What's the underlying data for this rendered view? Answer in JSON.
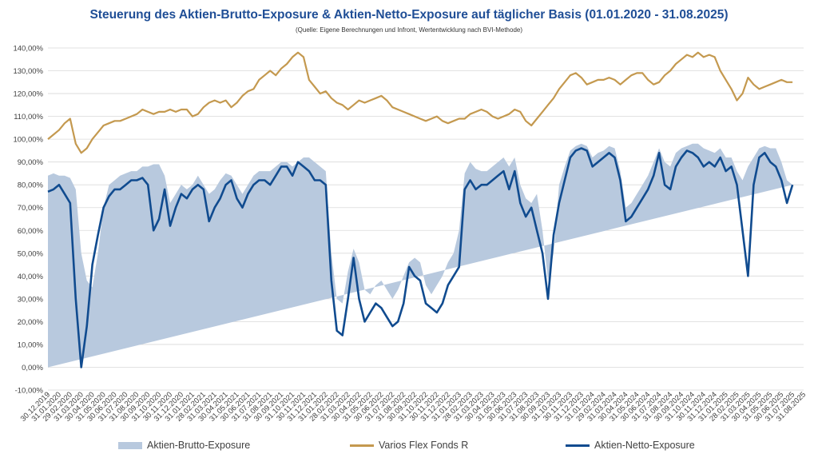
{
  "title": "Steuerung des Aktien-Brutto-Exposure & Aktien-Netto-Exposure auf täglicher Basis (01.01.2020 - 31.08.2025)",
  "subtitle": "(Quelle: Eigene Berechnungen und Infront, Wertentwicklung nach BVI-Methode)",
  "colors": {
    "brutto": "#b8c9de",
    "fund": "#c4994f",
    "netto": "#104b8f",
    "title": "#1f4e96"
  },
  "legend": [
    "Aktien-Brutto-Exposure",
    "Varios Flex Fonds R",
    "Aktien-Netto-Exposure"
  ],
  "chart_data": {
    "type": "line",
    "title": "Steuerung des Aktien-Brutto-Exposure & Aktien-Netto-Exposure auf täglicher Basis (01.01.2020 - 31.08.2025)",
    "y_unit": "%",
    "ylim": [
      -10,
      140
    ],
    "y_ticks": [
      "140,00%",
      "130,00%",
      "120,00%",
      "110,00%",
      "100,00%",
      "90,00%",
      "80,00%",
      "70,00%",
      "60,00%",
      "50,00%",
      "40,00%",
      "30,00%",
      "20,00%",
      "10,00%",
      "0,00%",
      "-10,00%"
    ],
    "x_ticks": [
      "30.12.2019",
      "31.01.2020",
      "29.02.2020",
      "31.03.2020",
      "30.04.2020",
      "31.05.2020",
      "30.06.2020",
      "31.07.2020",
      "31.08.2020",
      "30.09.2020",
      "31.10.2020",
      "30.11.2020",
      "31.12.2020",
      "31.01.2021",
      "28.02.2021",
      "31.03.2021",
      "30.04.2021",
      "31.05.2021",
      "30.06.2021",
      "31.07.2021",
      "31.08.2021",
      "30.09.2021",
      "31.10.2021",
      "30.11.2021",
      "31.12.2021",
      "31.01.2022",
      "28.02.2022",
      "31.03.2022",
      "30.04.2022",
      "31.05.2022",
      "30.06.2022",
      "31.07.2022",
      "31.08.2022",
      "30.09.2022",
      "31.10.2022",
      "30.11.2022",
      "31.12.2022",
      "31.01.2023",
      "28.02.2023",
      "31.03.2023",
      "30.04.2023",
      "31.05.2023",
      "30.06.2023",
      "31.07.2023",
      "31.08.2023",
      "30.09.2023",
      "31.10.2023",
      "30.11.2023",
      "31.12.2023",
      "31.01.2024",
      "29.02.2024",
      "31.03.2024",
      "30.04.2024",
      "31.05.2024",
      "30.06.2024",
      "31.07.2024",
      "31.08.2024",
      "30.09.2024",
      "31.10.2024",
      "30.11.2024",
      "31.12.2024",
      "31.01.2025",
      "28.02.2025",
      "31.03.2025",
      "30.04.2025",
      "31.05.2025",
      "30.06.2025",
      "31.07.2025",
      "31.08.2025"
    ],
    "grid": true,
    "legend_position": "bottom",
    "series": [
      {
        "name": "Aktien-Brutto-Exposure",
        "kind": "area",
        "x_month_index": [
          0,
          0.5,
          1,
          1.5,
          2,
          2.5,
          3,
          3.5,
          4,
          4.5,
          5,
          5.5,
          6,
          6.5,
          7,
          7.5,
          8,
          8.5,
          9,
          9.5,
          10,
          10.5,
          11,
          11.5,
          12,
          12.5,
          13,
          13.5,
          14,
          14.5,
          15,
          15.5,
          16,
          16.5,
          17,
          17.5,
          18,
          18.5,
          19,
          19.5,
          20,
          20.5,
          21,
          21.5,
          22,
          22.5,
          23,
          23.5,
          24,
          24.5,
          25,
          25.5,
          26,
          26.5,
          27,
          27.5,
          28,
          28.5,
          29,
          29.5,
          30,
          30.5,
          31,
          31.5,
          32,
          32.5,
          33,
          33.5,
          34,
          34.5,
          35,
          35.5,
          36,
          36.5,
          37,
          37.5,
          38,
          38.5,
          39,
          39.5,
          40,
          40.5,
          41,
          41.5,
          42,
          42.5,
          43,
          43.5,
          44,
          44.5,
          45,
          45.5,
          46,
          46.5,
          47,
          47.5,
          48,
          48.5,
          49,
          49.5,
          50,
          50.5,
          51,
          51.5,
          52,
          52.5,
          53,
          53.5,
          54,
          54.5,
          55,
          55.5,
          56,
          56.5,
          57,
          57.5,
          58,
          58.5,
          59,
          59.5,
          60,
          60.5,
          61,
          61.5,
          62,
          62.5,
          63,
          63.5,
          64,
          64.5,
          65,
          65.5,
          66,
          66.5,
          67,
          67.5,
          68
        ],
        "values": [
          84,
          85,
          84,
          84,
          83,
          78,
          50,
          38,
          35,
          50,
          70,
          80,
          82,
          84,
          85,
          86,
          86,
          88,
          88,
          89,
          89,
          84,
          72,
          76,
          80,
          78,
          80,
          84,
          80,
          76,
          78,
          82,
          85,
          84,
          80,
          76,
          80,
          84,
          86,
          86,
          86,
          88,
          90,
          90,
          88,
          90,
          92,
          92,
          90,
          88,
          86,
          50,
          30,
          28,
          42,
          52,
          46,
          34,
          32,
          36,
          38,
          34,
          30,
          34,
          40,
          46,
          48,
          46,
          36,
          32,
          36,
          40,
          46,
          50,
          60,
          85,
          90,
          87,
          86,
          86,
          88,
          90,
          92,
          88,
          92,
          80,
          74,
          72,
          76,
          60,
          38,
          50,
          80,
          88,
          95,
          97,
          98,
          97,
          92,
          94,
          95,
          97,
          96,
          86,
          70,
          72,
          76,
          80,
          84,
          90,
          96,
          90,
          88,
          94,
          96,
          97,
          98,
          98,
          96,
          95,
          94,
          96,
          92,
          92,
          86,
          82,
          88,
          92,
          96,
          97,
          96,
          96,
          90,
          82,
          80
        ]
      },
      {
        "name": "Varios Flex Fonds R",
        "kind": "line",
        "x_month_index": [
          0,
          0.5,
          1,
          1.5,
          2,
          2.5,
          3,
          3.5,
          4,
          4.5,
          5,
          5.5,
          6,
          6.5,
          7,
          7.5,
          8,
          8.5,
          9,
          9.5,
          10,
          10.5,
          11,
          11.5,
          12,
          12.5,
          13,
          13.5,
          14,
          14.5,
          15,
          15.5,
          16,
          16.5,
          17,
          17.5,
          18,
          18.5,
          19,
          19.5,
          20,
          20.5,
          21,
          21.5,
          22,
          22.5,
          23,
          23.5,
          24,
          24.5,
          25,
          25.5,
          26,
          26.5,
          27,
          27.5,
          28,
          28.5,
          29,
          29.5,
          30,
          30.5,
          31,
          31.5,
          32,
          32.5,
          33,
          33.5,
          34,
          34.5,
          35,
          35.5,
          36,
          36.5,
          37,
          37.5,
          38,
          38.5,
          39,
          39.5,
          40,
          40.5,
          41,
          41.5,
          42,
          42.5,
          43,
          43.5,
          44,
          44.5,
          45,
          45.5,
          46,
          46.5,
          47,
          47.5,
          48,
          48.5,
          49,
          49.5,
          50,
          50.5,
          51,
          51.5,
          52,
          52.5,
          53,
          53.5,
          54,
          54.5,
          55,
          55.5,
          56,
          56.5,
          57,
          57.5,
          58,
          58.5,
          59,
          59.5,
          60,
          60.5,
          61,
          61.5,
          62,
          62.5,
          63,
          63.5,
          64,
          64.5,
          65,
          65.5,
          66,
          66.5,
          67,
          67.5,
          68
        ],
        "values": [
          100,
          102,
          104,
          107,
          109,
          98,
          94,
          96,
          100,
          103,
          106,
          107,
          108,
          108,
          109,
          110,
          111,
          113,
          112,
          111,
          112,
          112,
          113,
          112,
          113,
          113,
          110,
          111,
          114,
          116,
          117,
          116,
          117,
          114,
          116,
          119,
          121,
          122,
          126,
          128,
          130,
          128,
          131,
          133,
          136,
          138,
          136,
          126,
          123,
          120,
          121,
          118,
          116,
          115,
          113,
          115,
          117,
          116,
          117,
          118,
          119,
          117,
          114,
          113,
          112,
          111,
          110,
          109,
          108,
          109,
          110,
          108,
          107,
          108,
          109,
          109,
          111,
          112,
          113,
          112,
          110,
          109,
          110,
          111,
          113,
          112,
          108,
          106,
          109,
          112,
          115,
          118,
          122,
          125,
          128,
          129,
          127,
          124,
          125,
          126,
          126,
          127,
          126,
          124,
          126,
          128,
          129,
          129,
          126,
          124,
          125,
          128,
          130,
          133,
          135,
          137,
          136,
          138,
          136,
          137,
          136,
          130,
          126,
          122,
          117,
          120,
          127,
          124,
          122,
          123,
          124,
          125,
          126,
          125,
          125
        ]
      },
      {
        "name": "Aktien-Netto-Exposure",
        "kind": "line",
        "x_month_index": [
          0,
          0.5,
          1,
          1.5,
          2,
          2.5,
          3,
          3.5,
          4,
          4.5,
          5,
          5.5,
          6,
          6.5,
          7,
          7.5,
          8,
          8.5,
          9,
          9.5,
          10,
          10.5,
          11,
          11.5,
          12,
          12.5,
          13,
          13.5,
          14,
          14.5,
          15,
          15.5,
          16,
          16.5,
          17,
          17.5,
          18,
          18.5,
          19,
          19.5,
          20,
          20.5,
          21,
          21.5,
          22,
          22.5,
          23,
          23.5,
          24,
          24.5,
          25,
          25.5,
          26,
          26.5,
          27,
          27.5,
          28,
          28.5,
          29,
          29.5,
          30,
          30.5,
          31,
          31.5,
          32,
          32.5,
          33,
          33.5,
          34,
          34.5,
          35,
          35.5,
          36,
          36.5,
          37,
          37.5,
          38,
          38.5,
          39,
          39.5,
          40,
          40.5,
          41,
          41.5,
          42,
          42.5,
          43,
          43.5,
          44,
          44.5,
          45,
          45.5,
          46,
          46.5,
          47,
          47.5,
          48,
          48.5,
          49,
          49.5,
          50,
          50.5,
          51,
          51.5,
          52,
          52.5,
          53,
          53.5,
          54,
          54.5,
          55,
          55.5,
          56,
          56.5,
          57,
          57.5,
          58,
          58.5,
          59,
          59.5,
          60,
          60.5,
          61,
          61.5,
          62,
          62.5,
          63,
          63.5,
          64,
          64.5,
          65,
          65.5,
          66,
          66.5,
          67,
          67.5,
          68
        ],
        "values": [
          77,
          78,
          80,
          76,
          72,
          30,
          0,
          18,
          45,
          58,
          70,
          75,
          78,
          78,
          80,
          82,
          82,
          83,
          80,
          60,
          65,
          78,
          62,
          70,
          76,
          74,
          78,
          80,
          78,
          64,
          70,
          74,
          80,
          82,
          74,
          70,
          76,
          80,
          82,
          82,
          80,
          84,
          88,
          88,
          84,
          90,
          88,
          86,
          82,
          82,
          80,
          38,
          16,
          14,
          30,
          48,
          30,
          20,
          24,
          28,
          26,
          22,
          18,
          20,
          28,
          44,
          40,
          38,
          28,
          26,
          24,
          28,
          36,
          40,
          44,
          78,
          82,
          78,
          80,
          80,
          82,
          84,
          86,
          78,
          86,
          72,
          66,
          70,
          60,
          50,
          30,
          58,
          72,
          82,
          92,
          95,
          96,
          95,
          88,
          90,
          92,
          94,
          92,
          82,
          64,
          66,
          70,
          74,
          78,
          84,
          94,
          80,
          78,
          88,
          92,
          95,
          94,
          92,
          88,
          90,
          88,
          92,
          86,
          88,
          80,
          60,
          40,
          80,
          92,
          94,
          90,
          88,
          82,
          72,
          80
        ]
      }
    ]
  }
}
